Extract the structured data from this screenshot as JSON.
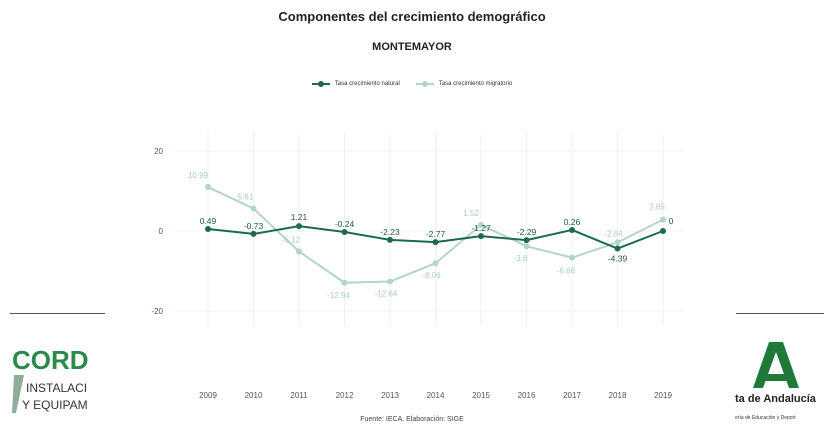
{
  "title": "Componentes del crecimiento demográfico",
  "subtitle": "MONTEMAYOR",
  "source": "Fuente: IECA. Elaboración: SIGE",
  "logos": {
    "left": {
      "name": "CORD",
      "line1": "INSTALACI",
      "line2": "Y EQUIPAM",
      "color": "#2a8a4a"
    },
    "right": {
      "name": "ta de Andalucía",
      "sub": "ería de Educación y Deport",
      "color": "#1f7a3a"
    }
  },
  "colors": {
    "natural": "#1a6b50",
    "migratorio": "#b3d4cb",
    "grid": "#f0f0f0"
  },
  "chart_data": {
    "type": "line",
    "title": "Componentes del crecimiento demográfico",
    "subtitle": "MONTEMAYOR",
    "x": [
      "2009",
      "2010",
      "2011",
      "2012",
      "2013",
      "2014",
      "2015",
      "2016",
      "2017",
      "2018",
      "2019"
    ],
    "ylim": [
      -20,
      20
    ],
    "yticks": [
      -20,
      0,
      20
    ],
    "grid": true,
    "legend_position": "top",
    "series": [
      {
        "name": "Tasa crecimiento natural",
        "values": [
          0.49,
          -0.73,
          1.21,
          -0.24,
          -2.23,
          -2.77,
          -1.27,
          -2.29,
          0.26,
          -4.39,
          0
        ],
        "labels": [
          "0.49",
          "-0.73",
          "1.21",
          "-0.24",
          "-2.23",
          "-2.77",
          "-1.27",
          "-2.29",
          "0.26",
          "-4.39",
          "0"
        ]
      },
      {
        "name": "Tasa crecimiento migratorio",
        "values": [
          10.99,
          5.61,
          -5.12,
          -12.94,
          -12.64,
          -8.06,
          1.52,
          -3.8,
          -6.66,
          -2.84,
          2.85
        ],
        "labels": [
          "10.99",
          "5.61",
          "-5.12",
          "-12.94",
          "-12.64",
          "-8.06",
          "1.52",
          "-3.8",
          "-6.66",
          "-2.84",
          "2.85"
        ]
      }
    ]
  }
}
